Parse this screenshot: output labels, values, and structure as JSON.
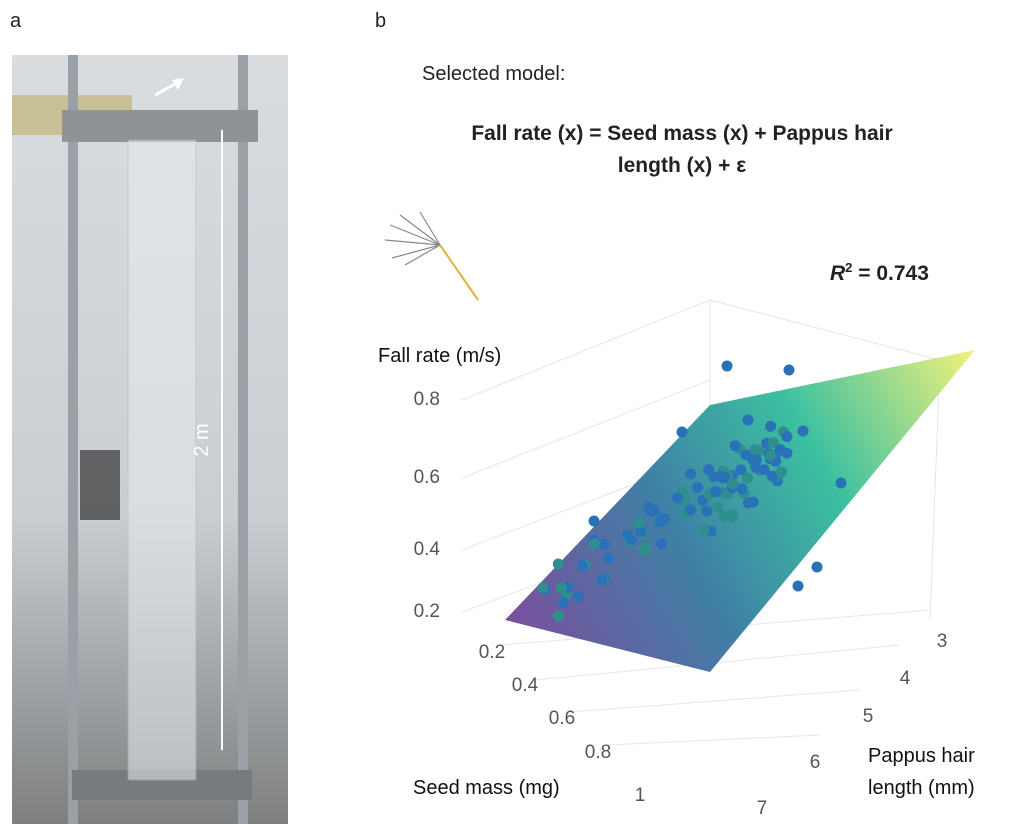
{
  "panels": {
    "a": "a",
    "b": "b"
  },
  "photo": {
    "scale_label": "2 m"
  },
  "model": {
    "heading": "Selected model:",
    "formula_line1": "Fall rate (x) = Seed mass (x) + Pappus hair",
    "formula_line2": "length (x) + ε"
  },
  "fit": {
    "symbol": "R",
    "exponent": "2",
    "text": " = 0.743"
  },
  "plot": {
    "z_title": "Fall rate (m/s)",
    "z_ticks": [
      "0.8",
      "0.6",
      "0.4",
      "0.2"
    ],
    "x_title": "Seed mass (mg)",
    "x_ticks": [
      "0.2",
      "0.4",
      "0.6",
      "0.8",
      "1"
    ],
    "y_title_line1": "Pappus hair",
    "y_title_line2": "length (mm)",
    "y_ticks": [
      "3",
      "4",
      "5",
      "6",
      "7"
    ]
  }
}
